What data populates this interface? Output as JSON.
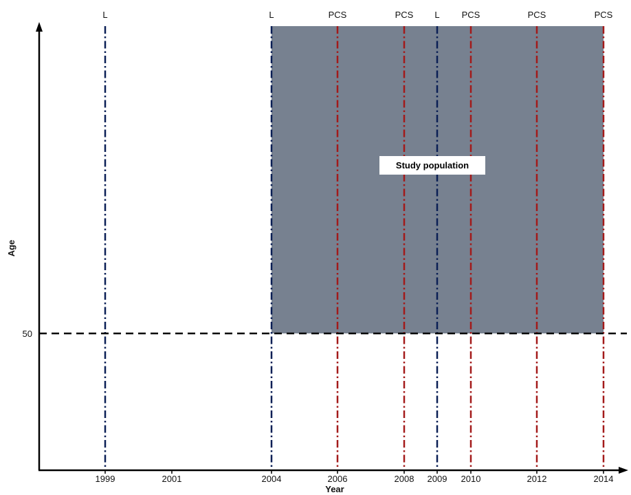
{
  "diagram": {
    "x_axis_title": "Year",
    "y_axis_title": "Age",
    "y_marker_label": "50",
    "region_label": "Study population",
    "region_color": "#778190",
    "colors": {
      "l_line": "#0a1f55",
      "pcs_line": "#a31a1a",
      "axis": "#000000",
      "threshold": "#000000"
    },
    "x_ticks": [
      "1999",
      "2001",
      "2004",
      "2006",
      "2008",
      "2009",
      "2010",
      "2012",
      "2014"
    ],
    "events": [
      {
        "year": "1999",
        "label": "L",
        "kind": "L"
      },
      {
        "year": "2004",
        "label": "L",
        "kind": "L"
      },
      {
        "year": "2006",
        "label": "PCS",
        "kind": "PCS"
      },
      {
        "year": "2008",
        "label": "PCS",
        "kind": "PCS"
      },
      {
        "year": "2009",
        "label": "L",
        "kind": "L"
      },
      {
        "year": "2010",
        "label": "PCS",
        "kind": "PCS"
      },
      {
        "year": "2012",
        "label": "PCS",
        "kind": "PCS"
      },
      {
        "year": "2014",
        "label": "PCS",
        "kind": "PCS"
      }
    ],
    "region_years": [
      "2004",
      "2014"
    ]
  }
}
